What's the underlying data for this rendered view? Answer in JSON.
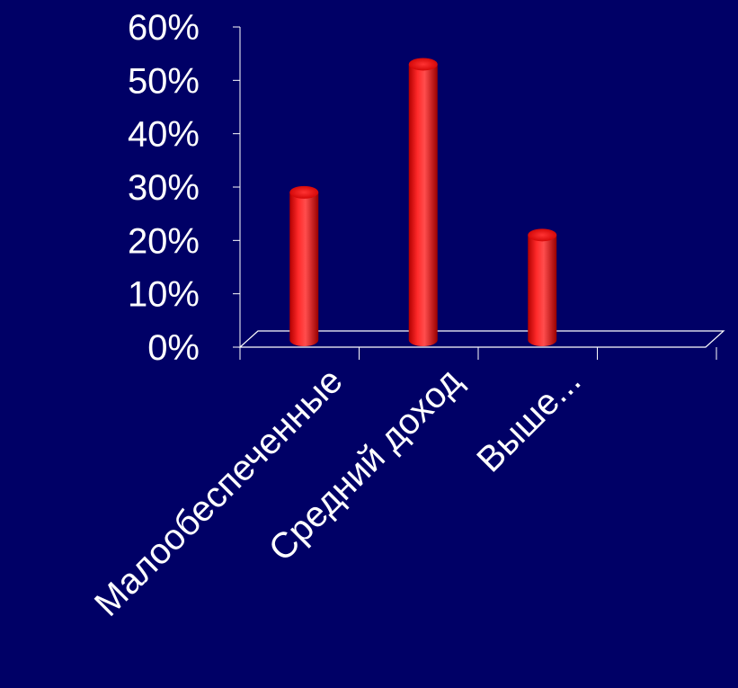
{
  "chart_data": {
    "type": "bar",
    "style": "3d-cylinder",
    "categories": [
      "Малообеспеченные",
      "Средний доход",
      "Выше..."
    ],
    "values": [
      28,
      52,
      20
    ],
    "unit": "%",
    "ylim": [
      0,
      60
    ],
    "yticks": [
      "0%",
      "10%",
      "20%",
      "30%",
      "40%",
      "50%",
      "60%"
    ],
    "grid": false,
    "legend": "none",
    "colors": {
      "background": "#000066",
      "bar": "#ff1a1a",
      "axis": "#ffffff",
      "text": "#ffffff"
    }
  }
}
